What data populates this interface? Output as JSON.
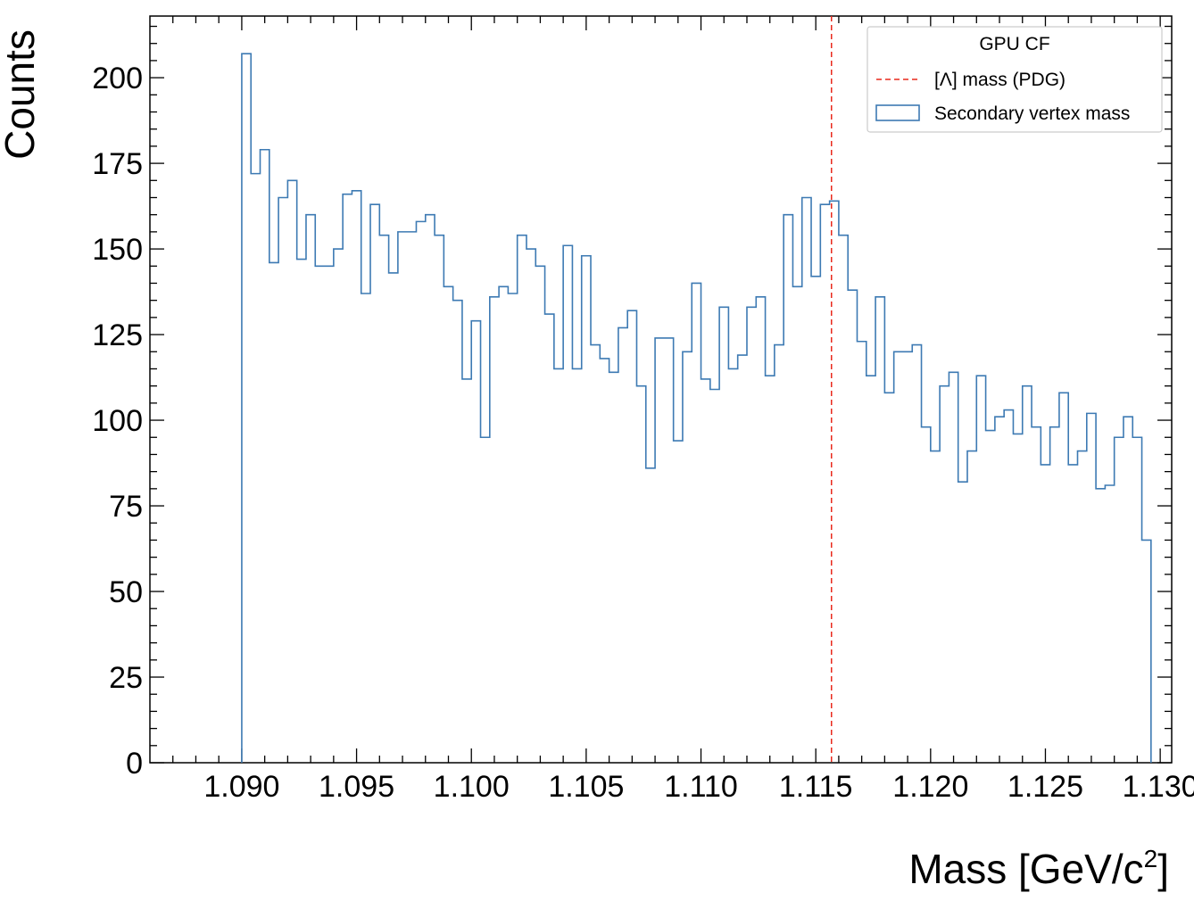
{
  "chart_data": {
    "type": "histogram-step",
    "xlabel_main": "Mass [GeV/c",
    "xlabel_sup": "2",
    "xlabel_end": "]",
    "ylabel": "Counts",
    "xlim": [
      1.086,
      1.1305
    ],
    "ylim": [
      0,
      218
    ],
    "x_ticks": [
      1.09,
      1.095,
      1.1,
      1.105,
      1.11,
      1.115,
      1.12,
      1.125,
      1.13
    ],
    "x_tick_labels": [
      "1.090",
      "1.095",
      "1.100",
      "1.105",
      "1.110",
      "1.115",
      "1.120",
      "1.125",
      "1.130"
    ],
    "y_ticks": [
      0,
      25,
      50,
      75,
      100,
      125,
      150,
      175,
      200
    ],
    "y_tick_labels": [
      "0",
      "25",
      "50",
      "75",
      "100",
      "125",
      "150",
      "175",
      "200"
    ],
    "bin_start": 1.09,
    "bin_width": 0.0004,
    "counts": [
      207,
      172,
      179,
      146,
      165,
      170,
      147,
      160,
      145,
      145,
      150,
      166,
      167,
      137,
      163,
      154,
      143,
      155,
      155,
      158,
      160,
      154,
      139,
      135,
      112,
      129,
      95,
      136,
      139,
      137,
      154,
      150,
      145,
      131,
      115,
      151,
      115,
      148,
      122,
      118,
      114,
      127,
      132,
      110,
      86,
      124,
      124,
      94,
      120,
      140,
      112,
      109,
      133,
      115,
      119,
      133,
      136,
      113,
      122,
      160,
      139,
      165,
      142,
      163,
      164,
      154,
      138,
      123,
      113,
      136,
      108,
      120,
      120,
      122,
      98,
      91,
      110,
      114,
      82,
      91,
      113,
      97,
      101,
      103,
      96,
      110,
      98,
      87,
      98,
      108,
      87,
      91,
      102,
      80,
      81,
      95,
      101,
      95,
      65
    ],
    "vline_x": 1.115683,
    "series_color": "#3d7ab3",
    "vline_color": "#e8291c",
    "legend": {
      "title": "GPU CF",
      "entries": [
        {
          "label": "[Λ] mass (PDG)",
          "style": "dashed-line",
          "color": "#e8291c"
        },
        {
          "label": "Secondary vertex mass",
          "style": "box",
          "color": "#3d7ab3"
        }
      ],
      "placement": "top-right"
    }
  }
}
